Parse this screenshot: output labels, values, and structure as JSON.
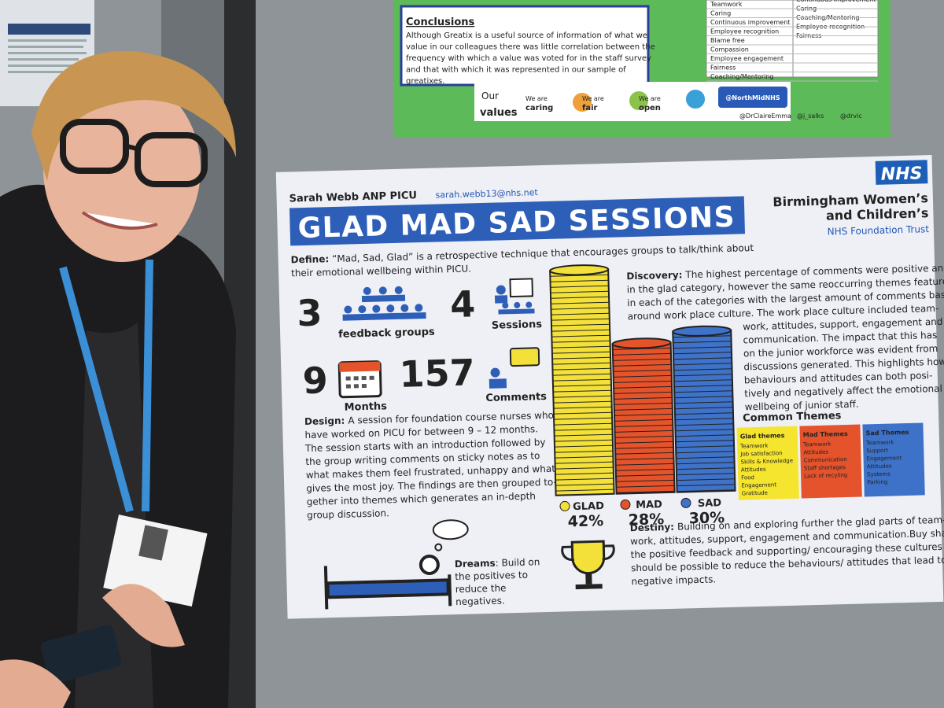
{
  "top_poster": {
    "conclusions_title": "Conclusions",
    "conclusions_lines": [
      "Although Greatix is a useful source of information of what we",
      "value in our colleagues there was little correlation between the",
      "frequency with which a value was voted for in the staff survey",
      "and that with which it was represented in our sample of",
      "greatixes."
    ],
    "table_col1": [
      "Teamwork",
      "Caring",
      "Continuous improvement",
      "Employee recognition",
      "Blame free",
      "Compassion",
      "Employee engagement",
      "Fairness",
      "Coaching/Mentoring"
    ],
    "table_col2": [
      "Continuous improvement",
      "Caring",
      "Coaching/Mentoring",
      "Employee recognition",
      "Fairness"
    ],
    "values_our": "Our",
    "values_word": "values",
    "values_items": [
      {
        "we_are": "We are",
        "word": "caring"
      },
      {
        "we_are": "We are",
        "word": "fair"
      },
      {
        "we_are": "We are",
        "word": "open"
      }
    ],
    "twitter": "@NorthMidNHS",
    "handles": [
      "@DrClaireEmma",
      "@j_salks",
      "@drvic"
    ]
  },
  "poster": {
    "author": "Sarah Webb ANP PICU",
    "email": "sarah.webb13@nhs.net",
    "title": "GLAD MAD SAD SESSIONS",
    "nhs_logo": "NHS",
    "org_lines": [
      "Birmingham Women’s",
      "and Children’s"
    ],
    "trust": "NHS Foundation Trust",
    "define_label": "Define:",
    "define_lines": [
      "“Mad, Sad, Glad” is a retrospective technique that encourages groups to talk/think about",
      "their emotional wellbeing within PICU."
    ],
    "stats": [
      {
        "number": 3,
        "label": "feedback groups"
      },
      {
        "number": 4,
        "label": "Sessions"
      },
      {
        "number": 9,
        "label": "Months"
      },
      {
        "number": 157,
        "label": "Comments"
      }
    ],
    "design_label": "Design:",
    "design_lines": [
      "A session for foundation course nurses who",
      "have worked on PICU for between 9 – 12 months.",
      "The session starts with an introduction followed by",
      "the group writing comments on sticky notes as to",
      "what makes them feel frustrated, unhappy and what",
      "gives the most joy. The findings are then grouped to-",
      "gether into themes which generates an in-depth",
      "group discussion."
    ],
    "chart": {
      "categories": [
        "GLAD",
        "MAD",
        "SAD"
      ],
      "values": [
        42,
        28,
        30
      ],
      "value_labels": [
        "42%",
        "28%",
        "30%"
      ],
      "colors": [
        "#f3e13a",
        "#e5532a",
        "#3f73c9"
      ]
    },
    "discovery_label": "Discovery:",
    "discovery_lines": [
      "The highest percentage of comments were positive and",
      "in the glad category, however the same reoccurring themes featured",
      "in each of the categories with the largest amount of comments based",
      "around work place culture. The work place culture included team-",
      "work, attitudes, support, engagement and",
      "communication. The impact that this has",
      "on the junior workforce was evident from",
      "discussions generated. This highlights how",
      "behaviours and attitudes can both posi-",
      "tively and negatively affect the emotional",
      "wellbeing of junior staff."
    ],
    "themes_title": "Common Themes",
    "themes": [
      {
        "title": "Glad themes",
        "color": "#f6e52e",
        "items": [
          "Teamwork",
          "Job satisfaction",
          "Skills & Knowledge",
          "Attitudes",
          "Food",
          "Engagement",
          "Gratitude"
        ]
      },
      {
        "title": "Mad Themes",
        "color": "#e4532b",
        "items": [
          "Teamwork",
          "Attitudes",
          "Communication",
          "Staff shortages",
          "Lack of recyling"
        ]
      },
      {
        "title": "Sad Themes",
        "color": "#3d72c8",
        "items": [
          "Teamwork",
          "Support",
          "Engagement",
          "Attitudes",
          "Systems",
          "Parking"
        ]
      }
    ],
    "dreams_label": "Dreams",
    "dreams_lines": [
      ": Build on",
      "the positives to",
      "reduce the",
      "negatives."
    ],
    "destiny_label": "Destiny:",
    "destiny_lines": [
      "Building on and exploring further the glad parts of team-",
      "work, attitudes, support, engagement and communication.Buy sharing",
      "the positive feedback and supporting/ encouraging these cultures it",
      "should be possible to reduce the behaviours/ attitudes that lead to",
      "negative impacts."
    ]
  }
}
